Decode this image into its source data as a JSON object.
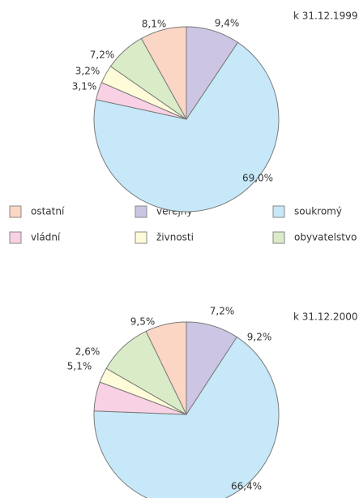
{
  "legend": [
    {
      "name": "ostatní",
      "color": "#fcd6c4"
    },
    {
      "name": "veřejný",
      "color": "#ccc5e3"
    },
    {
      "name": "soukromý",
      "color": "#c6e8f8"
    },
    {
      "name": "vládní",
      "color": "#f9d1e4"
    },
    {
      "name": "živnosti",
      "color": "#fefbd8"
    },
    {
      "name": "obyvatelstvo",
      "color": "#d9ecc7"
    }
  ],
  "chart_data": [
    {
      "type": "pie",
      "title": "k 31.12.1999",
      "categories": [
        "veřejný",
        "soukromý",
        "vládní",
        "živnosti",
        "obyvatelstvo",
        "ostatní"
      ],
      "values": [
        9.4,
        69.0,
        3.1,
        3.2,
        7.2,
        8.1
      ],
      "value_labels": [
        "9,4%",
        "69,0%",
        "3,1%",
        "3,2%",
        "7,2%",
        "8,1%"
      ]
    },
    {
      "type": "pie",
      "title": "k 31.12.2000",
      "categories": [
        "veřejný",
        "soukromý",
        "vládní",
        "živnosti",
        "obyvatelstvo",
        "ostatní"
      ],
      "values": [
        9.2,
        66.4,
        5.1,
        2.6,
        9.5,
        7.2
      ],
      "value_labels": [
        "9,2%",
        "66,4%",
        "5,1%",
        "2,6%",
        "9,5%",
        "7,2%"
      ]
    }
  ]
}
